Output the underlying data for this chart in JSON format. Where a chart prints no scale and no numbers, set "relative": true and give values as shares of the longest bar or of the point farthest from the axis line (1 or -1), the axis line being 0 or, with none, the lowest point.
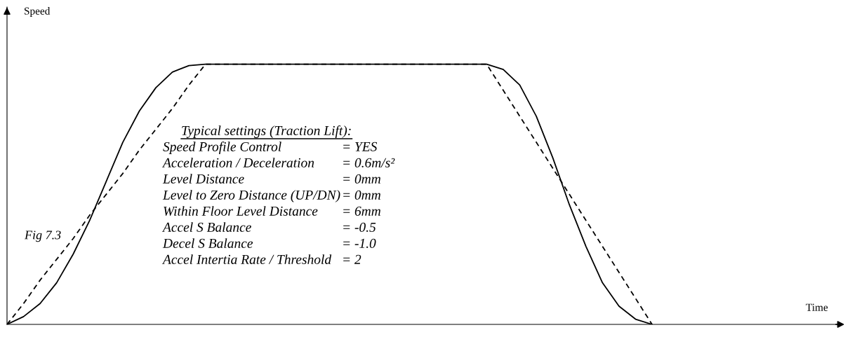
{
  "chart_data": {
    "type": "line",
    "relative": true,
    "xlabel": "Time",
    "ylabel": "Speed",
    "legend": false,
    "marker": "none",
    "categories": [
      null,
      null,
      null,
      null,
      null,
      null,
      null,
      null,
      null,
      null,
      null,
      null,
      null,
      null,
      null,
      null,
      null,
      null,
      null,
      null,
      null,
      null,
      null,
      null,
      null,
      null,
      null,
      null,
      null,
      null,
      null,
      null,
      null,
      null,
      null,
      null,
      null,
      null,
      null,
      null,
      null,
      null,
      null,
      null,
      null,
      null,
      null,
      null,
      null,
      null,
      null
    ],
    "series": [
      {
        "color": "#000000",
        "line_style": "solid",
        "values": [
          0,
          0.03,
          0.08,
          0.16,
          0.27,
          0.4,
          0.55,
          0.7,
          0.82,
          0.91,
          0.97,
          0.995,
          1,
          1,
          1,
          1,
          1,
          1,
          1,
          1,
          1,
          1,
          1,
          1,
          1,
          1,
          1,
          1,
          1,
          1,
          0.98,
          0.92,
          0.8,
          0.64,
          0.46,
          0.3,
          0.16,
          0.07,
          0.02,
          0,
          null,
          null,
          null,
          null,
          null,
          null,
          null,
          null,
          null,
          null,
          null
        ]
      },
      {
        "color": "#000000",
        "line_style": "dashed",
        "values": [
          0,
          0.08,
          0.17,
          0.25,
          0.33,
          0.42,
          0.5,
          0.58,
          0.67,
          0.75,
          0.83,
          0.92,
          1,
          1,
          1,
          1,
          1,
          1,
          1,
          1,
          1,
          1,
          1,
          1,
          1,
          1,
          1,
          1,
          1,
          1,
          0.9,
          0.8,
          0.7,
          0.6,
          0.5,
          0.4,
          0.3,
          0.2,
          0.1,
          0,
          null,
          null,
          null,
          null,
          null,
          null,
          null,
          null,
          null,
          null,
          null
        ]
      }
    ],
    "annotations": [
      "Fig 7.3",
      "Typical settings (Traction Lift):",
      "Speed Profile Control",
      "= YES",
      "Acceleration / Deceleration",
      "= 0.6m/s²",
      "Level Distance",
      "= 0mm",
      "Level to Zero Distance (UP/DN)",
      "= 0mm",
      "Within Floor Level Distance",
      "= 6mm",
      "Accel S Balance",
      "= -0.5",
      "Decel S Balance",
      "= -1.0",
      "Accel Intertia Rate / Threshold",
      "= 2"
    ]
  }
}
